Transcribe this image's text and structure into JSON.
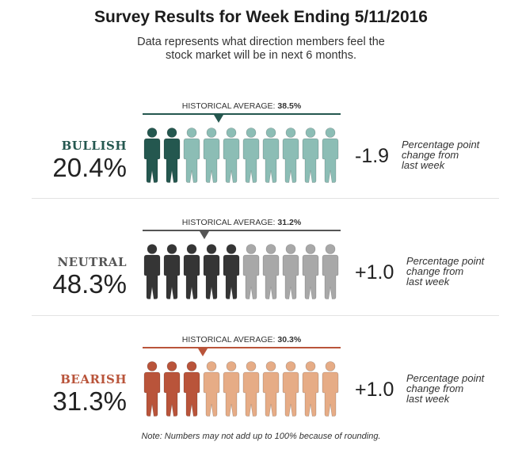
{
  "header": {
    "title": "Survey Results for Week Ending 5/11/2016",
    "subtitle_line1": "Data represents what direction members feel the",
    "subtitle_line2": "stock market will be in next 6 months."
  },
  "hist_prefix": "HISTORICAL AVERAGE:",
  "change_note": [
    "Percentage point",
    "change from",
    "last week"
  ],
  "chart_data": {
    "type": "pictogram",
    "icons_per_row": 10,
    "series": [
      {
        "name": "BULLISH",
        "value": 20.4,
        "value_label": "20.4%",
        "historical_average": 38.5,
        "historical_label": "38.5%",
        "change": -1.9,
        "change_label": "-1.9",
        "filled_icons": 2,
        "color_dark": "#24574f",
        "color_light": "#8cbdb5",
        "color_line": "#24574f",
        "color_label": "#24574f"
      },
      {
        "name": "NEUTRAL",
        "value": 48.3,
        "value_label": "48.3%",
        "historical_average": 31.2,
        "historical_label": "31.2%",
        "change": 1.0,
        "change_label": "+1.0",
        "filled_icons": 5,
        "color_dark": "#353535",
        "color_light": "#a8a8a8",
        "color_line": "#555555",
        "color_label": "#555555"
      },
      {
        "name": "BEARISH",
        "value": 31.3,
        "value_label": "31.3%",
        "historical_average": 30.3,
        "historical_label": "30.3%",
        "change": 1.0,
        "change_label": "+1.0",
        "filled_icons": 3,
        "color_dark": "#b9543a",
        "color_light": "#e6ac86",
        "color_line": "#b9543a",
        "color_label": "#b9543a"
      }
    ]
  },
  "footnote": "Note: Numbers may not add up to 100% because of rounding."
}
